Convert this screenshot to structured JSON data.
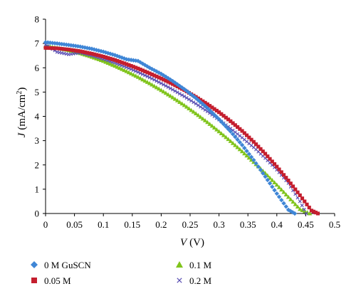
{
  "chart_data": {
    "type": "scatter",
    "xlabel": {
      "var": "V",
      "unit": "(V)"
    },
    "ylabel": {
      "var": "J",
      "unit_pre": "(mA/cm",
      "unit_sup": "2",
      "unit_post": ")"
    },
    "xlim": [
      0,
      0.5
    ],
    "ylim": [
      0,
      8
    ],
    "x_ticks": [
      "0",
      "0.05",
      "0.1",
      "0.15",
      "0.2",
      "0.25",
      "0.3",
      "0.35",
      "0.4",
      "0.45",
      "0.5"
    ],
    "y_ticks": [
      "0",
      "1",
      "2",
      "3",
      "4",
      "5",
      "6",
      "7",
      "8"
    ],
    "grid": false,
    "legend_position": "below",
    "series": [
      {
        "name": "0 M GuSCN",
        "marker": "diamond",
        "color": "#3f86d6",
        "x": [
          0,
          0.02,
          0.04,
          0.06,
          0.08,
          0.1,
          0.12,
          0.14,
          0.16,
          0.18,
          0.2,
          0.22,
          0.24,
          0.26,
          0.28,
          0.3,
          0.32,
          0.34,
          0.36,
          0.38,
          0.4,
          0.42,
          0.431
        ],
        "y": [
          7.05,
          7.0,
          6.94,
          6.87,
          6.78,
          6.66,
          6.52,
          6.35,
          6.28,
          6.0,
          5.75,
          5.45,
          5.12,
          4.75,
          4.34,
          3.88,
          3.38,
          2.82,
          2.2,
          1.52,
          0.82,
          0.15,
          0.0
        ]
      },
      {
        "name": "0.05 M",
        "marker": "square",
        "color": "#c41e2e",
        "x": [
          0,
          0.02,
          0.04,
          0.06,
          0.08,
          0.1,
          0.12,
          0.14,
          0.16,
          0.18,
          0.2,
          0.22,
          0.24,
          0.26,
          0.28,
          0.3,
          0.32,
          0.34,
          0.36,
          0.38,
          0.4,
          0.42,
          0.44,
          0.46,
          0.471
        ],
        "y": [
          6.82,
          6.8,
          6.75,
          6.68,
          6.58,
          6.46,
          6.32,
          6.15,
          5.97,
          5.77,
          5.56,
          5.33,
          5.08,
          4.8,
          4.5,
          4.17,
          3.8,
          3.4,
          2.95,
          2.46,
          1.93,
          1.36,
          0.75,
          0.12,
          0.0
        ]
      },
      {
        "name": "0.1 M",
        "marker": "triangle",
        "color": "#80c41c",
        "x": [
          0,
          0.02,
          0.04,
          0.06,
          0.08,
          0.1,
          0.12,
          0.14,
          0.16,
          0.18,
          0.2,
          0.22,
          0.24,
          0.26,
          0.28,
          0.3,
          0.32,
          0.34,
          0.36,
          0.38,
          0.4,
          0.42,
          0.44,
          0.457
        ],
        "y": [
          6.9,
          6.82,
          6.72,
          6.6,
          6.45,
          6.28,
          6.08,
          5.86,
          5.62,
          5.36,
          5.08,
          4.78,
          4.46,
          4.12,
          3.76,
          3.38,
          2.98,
          2.56,
          2.12,
          1.66,
          1.18,
          0.68,
          0.18,
          0.0
        ]
      },
      {
        "name": "0.2 M",
        "marker": "cross",
        "color": "#5a4fb3",
        "x": [
          0,
          0.02,
          0.04,
          0.06,
          0.08,
          0.1,
          0.12,
          0.14,
          0.16,
          0.18,
          0.2,
          0.22,
          0.24,
          0.26,
          0.28,
          0.3,
          0.32,
          0.34,
          0.36,
          0.38,
          0.4,
          0.42,
          0.44,
          0.451
        ],
        "y": [
          6.95,
          6.65,
          6.55,
          6.62,
          6.5,
          6.36,
          6.2,
          6.02,
          5.82,
          5.6,
          5.36,
          5.1,
          4.82,
          4.52,
          4.2,
          3.86,
          3.5,
          3.12,
          2.72,
          2.28,
          1.8,
          1.25,
          0.5,
          0.0
        ]
      }
    ]
  }
}
